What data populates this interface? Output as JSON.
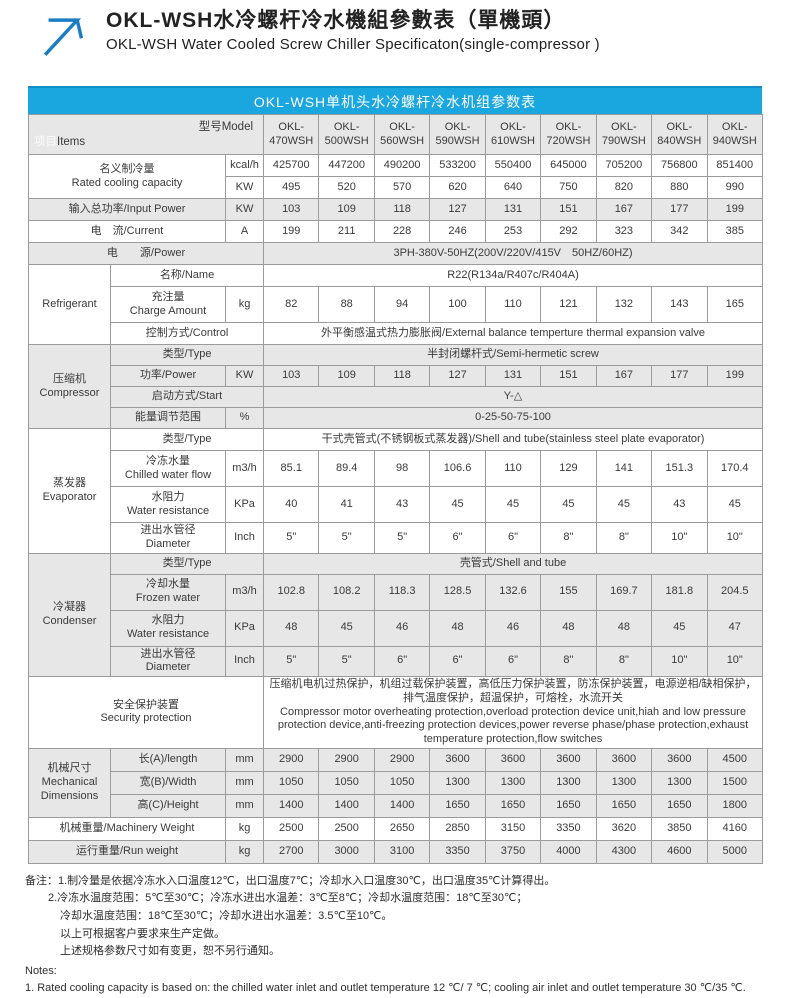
{
  "colors": {
    "banner_blue": "#1aa7e0",
    "logo_blue": "#1b7ec2",
    "row_gray": "#e7e7e7"
  },
  "page": {
    "title_zh": "OKL-WSH水冷螺杆冷水機組參數表（單機頭）",
    "title_en": "OKL-WSH Water Cooled Screw Chiller Specificaton(single-compressor )",
    "banner": "OKL-WSH单机头水冷螺杆冷水机组参数表"
  },
  "header": {
    "items_zh": "项目",
    "items_en": "Items",
    "model_label": "型号Model",
    "model_prefix": "OKL-"
  },
  "models": [
    "470WSH",
    "500WSH",
    "560WSH",
    "590WSH",
    "610WSH",
    "720WSH",
    "790WSH",
    "840WSH",
    "940WSH"
  ],
  "table": {
    "rows": [
      {
        "bg": "w",
        "h": 22,
        "cells": [
          {
            "lines": [
              "名义制冷量",
              "Rated cooling capacity"
            ],
            "colspan": 2,
            "rowspan": 2,
            "cls": "slabel"
          },
          {
            "text": "kcal/h",
            "cls": "unit"
          },
          425700,
          447200,
          490200,
          533200,
          550400,
          645000,
          705200,
          756800,
          851400
        ]
      },
      {
        "bg": "w",
        "h": 22,
        "cells": [
          {
            "text": "KW",
            "cls": "unit"
          },
          495,
          520,
          570,
          620,
          640,
          750,
          820,
          880,
          990
        ]
      },
      {
        "bg": "g",
        "h": 22,
        "cells": [
          {
            "text": "输入总功率/Input Power",
            "colspan": 2,
            "cls": "slabel"
          },
          {
            "text": "KW",
            "cls": "unit"
          },
          103,
          109,
          118,
          127,
          131,
          151,
          167,
          177,
          199
        ]
      },
      {
        "bg": "w",
        "h": 22,
        "cells": [
          {
            "text": "电　流/Current",
            "colspan": 2,
            "cls": "slabel"
          },
          {
            "text": "A",
            "cls": "unit"
          },
          199,
          211,
          228,
          246,
          253,
          292,
          323,
          342,
          385
        ]
      },
      {
        "bg": "g",
        "h": 22,
        "cells": [
          {
            "text": "电　　源/Power",
            "colspan": 3,
            "cls": "slabel"
          },
          {
            "text": "3PH-380V-50HZ(200V/220V/415V　50HZ/60HZ)",
            "colspan": 9,
            "cls": "span"
          }
        ]
      },
      {
        "bg": "w",
        "h": 22,
        "cells": [
          {
            "text": "Refrigerant",
            "rowspan": 3,
            "cls": "glabel"
          },
          {
            "text": "名称/Name",
            "colspan": 2,
            "cls": "slabel"
          },
          {
            "text": "R22(R134a/R407c/R404A)",
            "colspan": 9,
            "cls": "span"
          }
        ]
      },
      {
        "bg": "w",
        "h": 36,
        "cells": [
          {
            "lines": [
              "充注量",
              "Charge Amount"
            ],
            "cls": "slabel"
          },
          {
            "text": "kg",
            "cls": "unit"
          },
          82,
          88,
          94,
          100,
          110,
          121,
          132,
          143,
          165
        ]
      },
      {
        "bg": "w",
        "h": 22,
        "cells": [
          {
            "text": "控制方式/Control",
            "colspan": 2,
            "cls": "slabel"
          },
          {
            "text": "外平衡感温式热力膨胀阀/External balance temperture thermal expansion valve",
            "colspan": 9,
            "cls": "span"
          }
        ]
      },
      {
        "bg": "g",
        "h": 21,
        "cells": [
          {
            "lines": [
              "压缩机",
              "Compressor"
            ],
            "rowspan": 4,
            "cls": "glabel"
          },
          {
            "text": "类型/Type",
            "colspan": 2,
            "cls": "slabel"
          },
          {
            "text": "半封闭螺杆式/Semi-hermetic screw",
            "colspan": 9,
            "cls": "span"
          }
        ]
      },
      {
        "bg": "g",
        "h": 21,
        "cells": [
          {
            "text": "功率/Power",
            "cls": "slabel"
          },
          {
            "text": "KW",
            "cls": "unit"
          },
          103,
          109,
          118,
          127,
          131,
          151,
          167,
          177,
          199
        ]
      },
      {
        "bg": "g",
        "h": 21,
        "cells": [
          {
            "text": "启动方式/Start",
            "colspan": 2,
            "cls": "slabel"
          },
          {
            "text": "Y-△",
            "colspan": 9,
            "cls": "span"
          }
        ]
      },
      {
        "bg": "g",
        "h": 21,
        "cells": [
          {
            "text": "能量调节范围",
            "cls": "slabel"
          },
          {
            "text": "%",
            "cls": "unit"
          },
          {
            "text": "0-25-50-75-100",
            "colspan": 9,
            "cls": "span"
          }
        ]
      },
      {
        "bg": "w",
        "h": 22,
        "cells": [
          {
            "lines": [
              "蒸发器",
              "Evaporator"
            ],
            "rowspan": 4,
            "cls": "glabel"
          },
          {
            "text": "类型/Type",
            "colspan": 2,
            "cls": "slabel"
          },
          {
            "text": "干式壳管式(不锈钢板式蒸发器)/Shell and tube(stainless steel plate evaporator)",
            "colspan": 9,
            "cls": "span"
          }
        ]
      },
      {
        "bg": "w",
        "h": 36,
        "cells": [
          {
            "lines": [
              "冷冻水量",
              "Chilled water flow"
            ],
            "cls": "slabel"
          },
          {
            "text": "m3/h",
            "cls": "unit"
          },
          85.1,
          89.4,
          98,
          106.6,
          110,
          129,
          141,
          151.3,
          170.4
        ]
      },
      {
        "bg": "w",
        "h": 36,
        "cells": [
          {
            "lines": [
              "水阻力",
              "Water resistance"
            ],
            "cls": "slabel"
          },
          {
            "text": "KPa",
            "cls": "unit"
          },
          40,
          41,
          43,
          45,
          45,
          45,
          45,
          43,
          45
        ]
      },
      {
        "bg": "w",
        "h": 28,
        "cells": [
          {
            "lines": [
              "进出水管径",
              "Diameter"
            ],
            "cls": "slabel"
          },
          {
            "text": "Inch",
            "cls": "unit"
          },
          "5\"",
          "5\"",
          "5\"",
          "6\"",
          "6\"",
          "8\"",
          "8\"",
          "10\"",
          "10\""
        ]
      },
      {
        "bg": "g",
        "h": 21,
        "cells": [
          {
            "lines": [
              "冷凝器",
              "Condenser"
            ],
            "rowspan": 4,
            "cls": "glabel"
          },
          {
            "text": "类型/Type",
            "colspan": 2,
            "cls": "slabel"
          },
          {
            "text": "壳管式/Shell and tube",
            "colspan": 9,
            "cls": "span"
          }
        ]
      },
      {
        "bg": "g",
        "h": 36,
        "cells": [
          {
            "lines": [
              "冷却水量",
              "Frozen water"
            ],
            "cls": "slabel"
          },
          {
            "text": "m3/h",
            "cls": "unit"
          },
          102.8,
          108.2,
          118.3,
          128.5,
          132.6,
          155,
          169.7,
          181.8,
          204.5
        ]
      },
      {
        "bg": "g",
        "h": 36,
        "cells": [
          {
            "lines": [
              "水阻力",
              "Water resistance"
            ],
            "cls": "slabel"
          },
          {
            "text": "KPa",
            "cls": "unit"
          },
          48,
          45,
          46,
          48,
          46,
          48,
          48,
          45,
          47
        ]
      },
      {
        "bg": "g",
        "h": 30,
        "cells": [
          {
            "lines": [
              "进出水管径",
              "Diameter"
            ],
            "cls": "slabel"
          },
          {
            "text": "Inch",
            "cls": "unit"
          },
          "5\"",
          "5\"",
          "6\"",
          "6\"",
          "6\"",
          "8\"",
          "8\"",
          "10\"",
          "10\""
        ]
      },
      {
        "bg": "w",
        "h": 68,
        "cells": [
          {
            "lines": [
              "安全保护装置",
              "Security protection"
            ],
            "colspan": 3,
            "cls": "slabel"
          },
          {
            "lines": [
              "压缩机电机过热保护，机组过载保护装置，高低压力保护装置，防冻保护装置，电源逆相/缺相保护，排气温度保护，超温保护，可熔栓，水流开关",
              "Compressor motor overheating protection,overload protection device unit,hiah and low pressure protection device,anti-freezing protection devices,power reverse phase/phase protection,exhaust temperature protection,flow switches"
            ],
            "colspan": 9,
            "cls": "longtext"
          }
        ]
      },
      {
        "bg": "g",
        "h": 23,
        "cells": [
          {
            "lines": [
              "机械尺寸",
              "Mechanical",
              "Dimensions"
            ],
            "rowspan": 3,
            "cls": "glabel"
          },
          {
            "text": "长(A)/length",
            "cls": "slabel"
          },
          {
            "text": "mm",
            "cls": "unit"
          },
          2900,
          2900,
          2900,
          3600,
          3600,
          3600,
          3600,
          3600,
          4500
        ]
      },
      {
        "bg": "g",
        "h": 23,
        "cells": [
          {
            "text": "宽(B)/Width",
            "cls": "slabel"
          },
          {
            "text": "mm",
            "cls": "unit"
          },
          1050,
          1050,
          1050,
          1300,
          1300,
          1300,
          1300,
          1300,
          1500
        ]
      },
      {
        "bg": "g",
        "h": 23,
        "cells": [
          {
            "text": "高(C)/Height",
            "cls": "slabel"
          },
          {
            "text": "mm",
            "cls": "unit"
          },
          1400,
          1400,
          1400,
          1650,
          1650,
          1650,
          1650,
          1650,
          1800
        ]
      },
      {
        "bg": "w",
        "h": 23,
        "cells": [
          {
            "text": "机械重量/Machinery Weight",
            "colspan": 2,
            "cls": "slabel"
          },
          {
            "text": "kg",
            "cls": "unit"
          },
          2500,
          2500,
          2650,
          2850,
          3150,
          3350,
          3620,
          3850,
          4160
        ]
      },
      {
        "bg": "g",
        "h": 23,
        "cells": [
          {
            "text": "运行重量/Run weight",
            "colspan": 2,
            "cls": "slabel"
          },
          {
            "text": "kg",
            "cls": "unit"
          },
          2700,
          3000,
          3100,
          3350,
          3750,
          4000,
          4300,
          4600,
          5000
        ]
      }
    ]
  },
  "notes": {
    "zh": [
      {
        "indent": 0,
        "text": "备注：1.制冷量是依据冷冻水入口温度12℃，出口温度7℃；冷却水入口温度30℃，出口温度35℃计算得出。"
      },
      {
        "indent": 1,
        "text": "2.冷冻水温度范围：5℃至30℃；冷冻水进出水温差：3℃至8℃；冷却水温度范围：18℃至30℃；"
      },
      {
        "indent": 2,
        "text": "冷却水温度范围：18℃至30℃；冷却水进出水温差：3.5℃至10℃。"
      },
      {
        "indent": 2,
        "text": "以上可根据客户要求来生产定做。"
      },
      {
        "indent": 2,
        "text": "上述规格参数尺寸如有变更，恕不另行通知。"
      }
    ],
    "en_header": "Notes:",
    "en": [
      "1. Rated cooling capacity is based on: the chilled water inlet and outlet temperature 12 ℃/ 7 ℃; cooling air inlet and outlet temperature 30 ℃/35 ℃."
    ]
  }
}
